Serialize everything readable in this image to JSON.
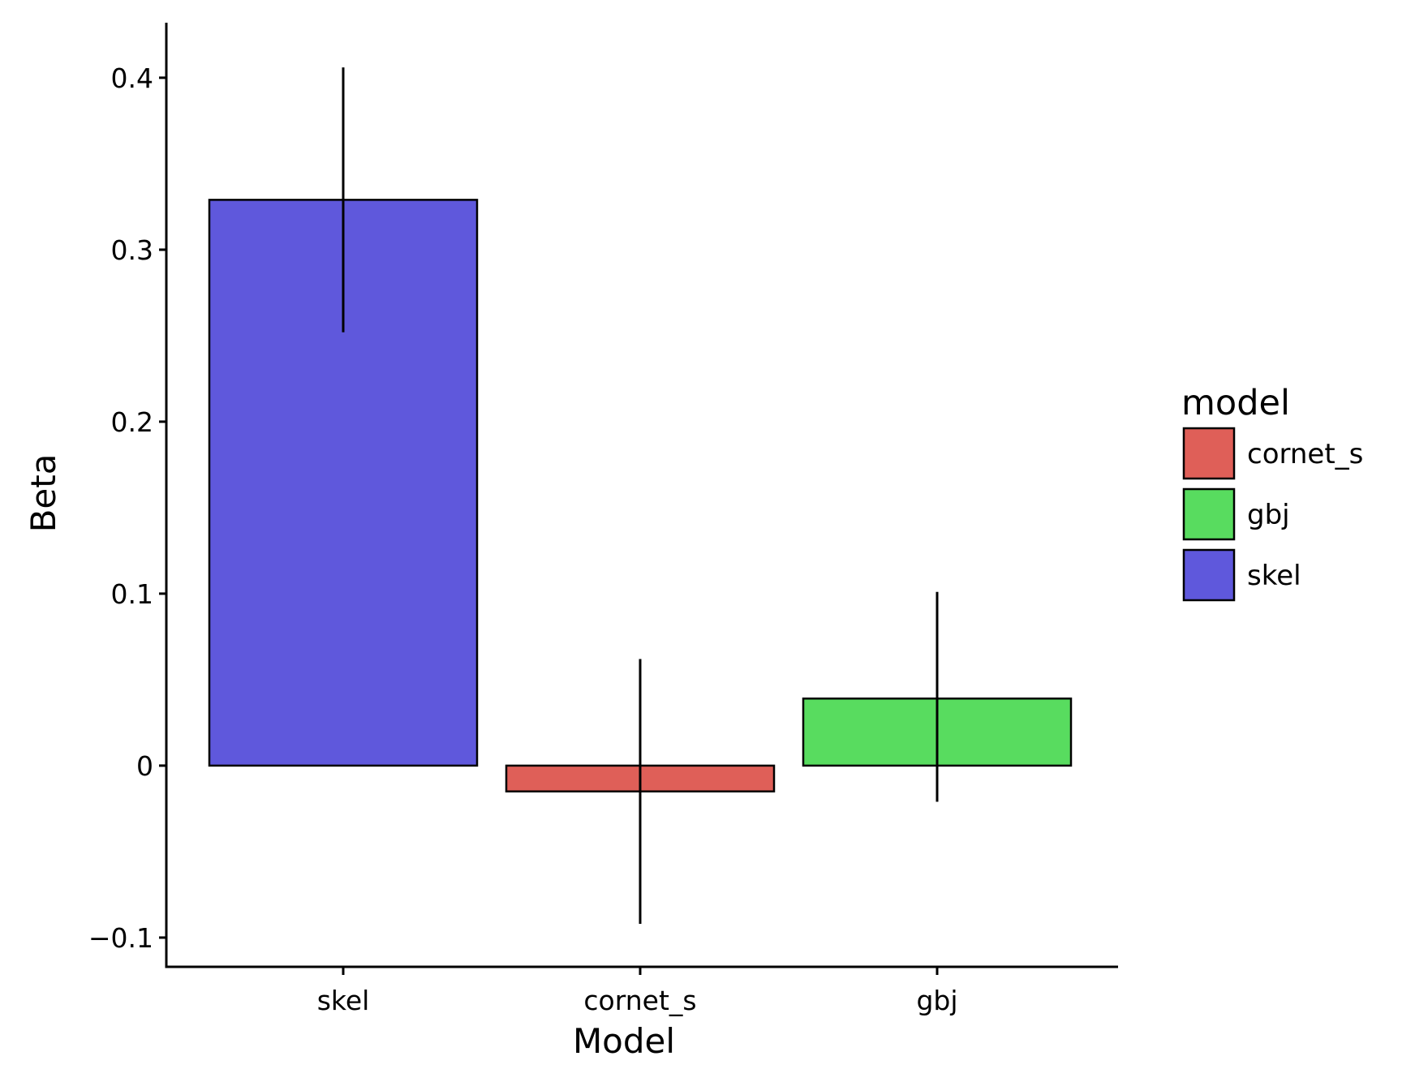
{
  "chart_data": {
    "type": "bar",
    "title": "",
    "xlabel": "Model",
    "ylabel": "Beta",
    "categories": [
      "skel",
      "cornet_s",
      "gbj"
    ],
    "values": [
      0.329,
      -0.015,
      0.039
    ],
    "error_bars": [
      {
        "low": 0.252,
        "high": 0.406
      },
      {
        "low": -0.092,
        "high": 0.062
      },
      {
        "low": -0.021,
        "high": 0.101
      }
    ],
    "colors": [
      "#5f58dc",
      "#df5f58",
      "#58dc5f"
    ],
    "ylim": [
      -0.117,
      0.432
    ],
    "yticks": [
      -0.1,
      0,
      0.1,
      0.2,
      0.3,
      0.4
    ],
    "ytick_labels": [
      "−0.1",
      "0",
      "0.1",
      "0.2",
      "0.3",
      "0.4"
    ],
    "grid": false,
    "legend": {
      "title": "model",
      "position": "right",
      "entries": [
        {
          "label": "cornet_s",
          "color": "#df5f58"
        },
        {
          "label": "gbj",
          "color": "#58dc5f"
        },
        {
          "label": "skel",
          "color": "#5f58dc"
        }
      ]
    }
  }
}
